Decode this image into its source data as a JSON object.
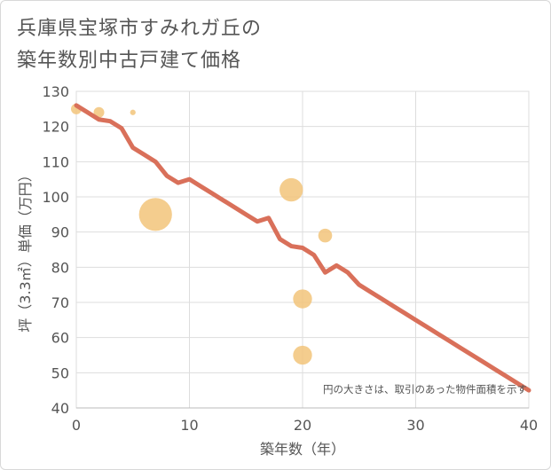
{
  "title_lines": [
    "兵庫県宝塚市すみれガ丘の",
    "築年数別中古戸建て価格"
  ],
  "chart_data": {
    "type": "scatter",
    "title": "兵庫県宝塚市すみれガ丘の築年数別中古戸建て価格",
    "xlabel": "築年数（年）",
    "ylabel": "坪（3.3㎡）単価（万円）",
    "xlim": [
      0,
      40
    ],
    "ylim": [
      40,
      130
    ],
    "xticks": [
      0,
      10,
      20,
      30,
      40
    ],
    "yticks": [
      40,
      50,
      60,
      70,
      80,
      90,
      100,
      110,
      120,
      130
    ],
    "grid": true,
    "annotation": "円の大きさは、取引のあった物件面積を示す",
    "colors": {
      "bubble": "#f2c47a",
      "line": "#d9705a",
      "axis_text": "#555555",
      "grid": "#dddddd"
    },
    "bubbles": [
      {
        "x": 0,
        "y": 125,
        "size": 1.5
      },
      {
        "x": 2,
        "y": 124,
        "size": 1.5
      },
      {
        "x": 5,
        "y": 124,
        "size": 0.7
      },
      {
        "x": 7,
        "y": 95,
        "size": 5
      },
      {
        "x": 19,
        "y": 102,
        "size": 3.5
      },
      {
        "x": 20,
        "y": 71,
        "size": 2.8
      },
      {
        "x": 20,
        "y": 55,
        "size": 2.8
      },
      {
        "x": 22,
        "y": 89,
        "size": 2
      }
    ],
    "trend": {
      "x": [
        0,
        1,
        2,
        3,
        4,
        5,
        6,
        7,
        8,
        9,
        10,
        11,
        12,
        13,
        14,
        15,
        16,
        17,
        18,
        19,
        20,
        21,
        22,
        23,
        24,
        25,
        26,
        27,
        28,
        29,
        30,
        31,
        32,
        33,
        34,
        35,
        36,
        37,
        38,
        39,
        40
      ],
      "y": [
        126,
        124,
        122,
        121.5,
        119.5,
        114,
        112,
        110,
        106,
        104,
        105,
        103,
        101,
        99,
        97,
        95,
        93,
        94,
        88,
        86,
        85.5,
        83.5,
        78.5,
        80.5,
        78.5,
        75,
        73,
        71,
        69,
        67,
        65,
        63,
        61,
        59,
        57,
        55,
        53,
        51,
        49,
        47,
        45
      ]
    }
  }
}
